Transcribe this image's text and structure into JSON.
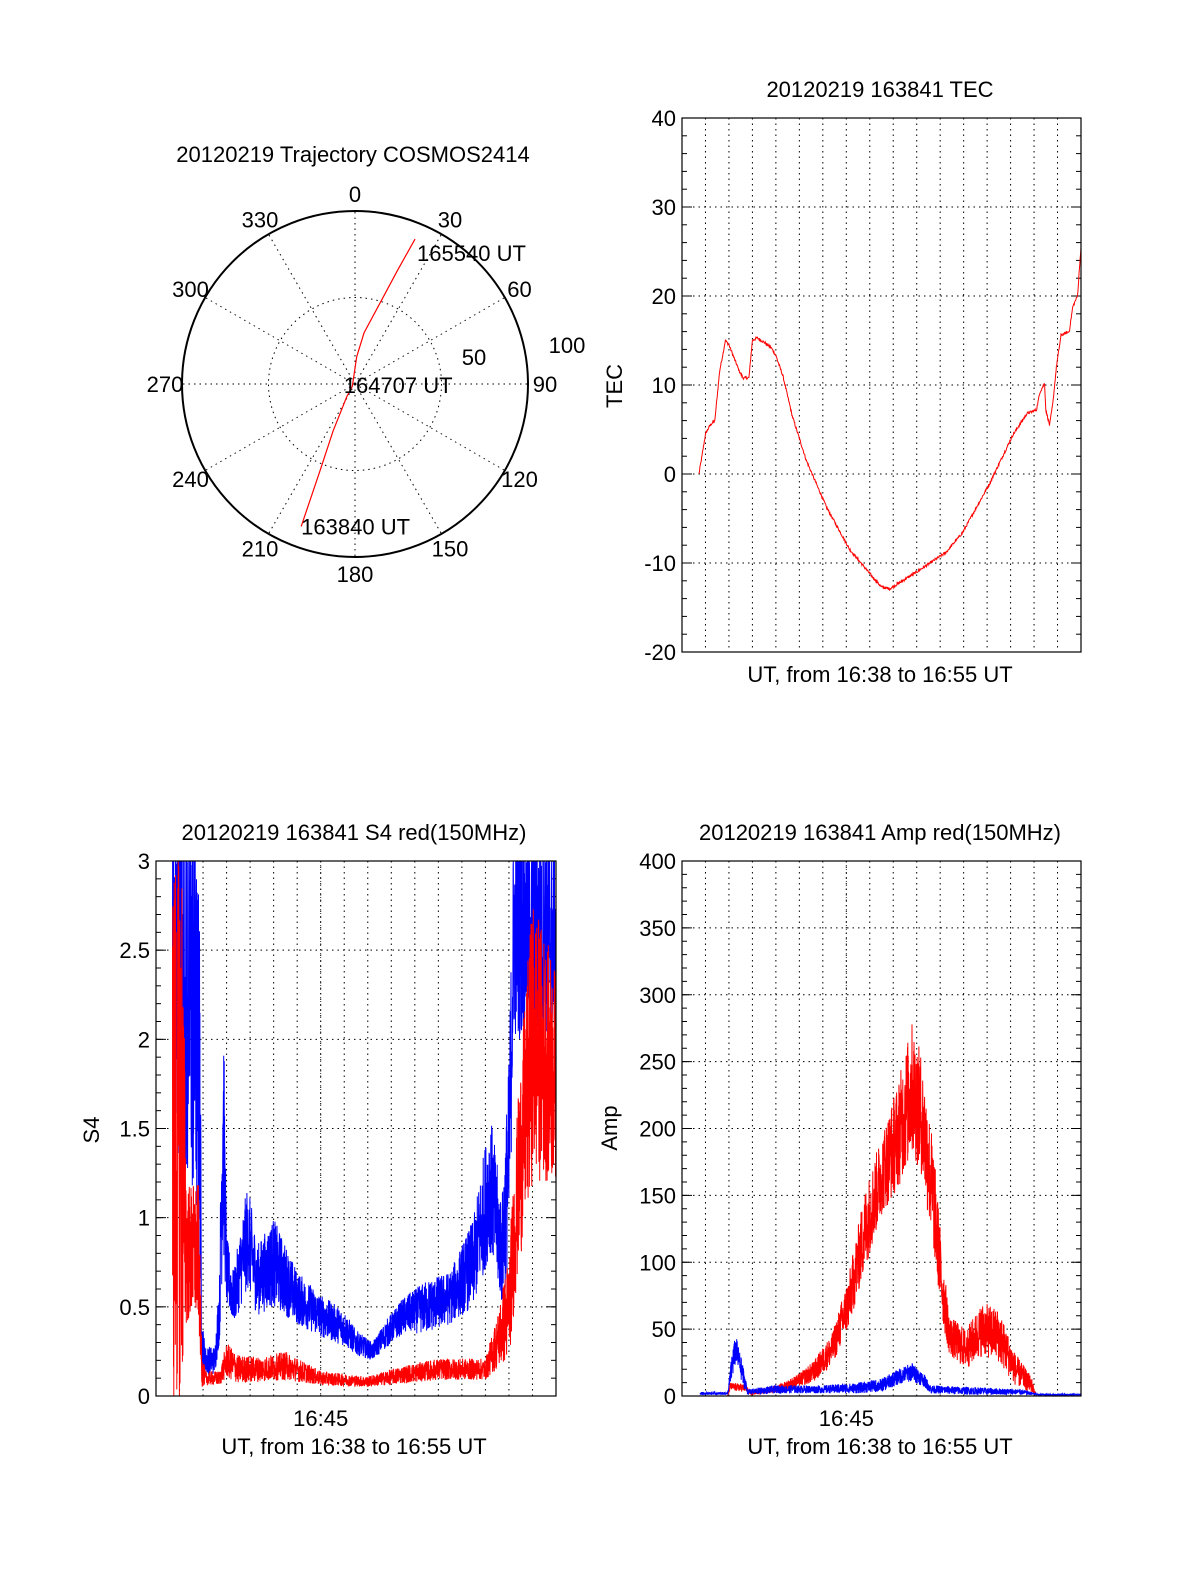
{
  "chart_data": [
    {
      "type": "polar",
      "title": "20120219 Trajectory COSMOS2414",
      "rmax": 100,
      "inner_circle": 50,
      "azimuth_labels": [
        "0",
        "30",
        "60",
        "90",
        "120",
        "150",
        "180",
        "210",
        "240",
        "270",
        "300",
        "330"
      ],
      "radial_labels": [
        "50",
        "100"
      ],
      "trajectory_color": "#ff0000",
      "trajectory": [
        [
          200.7,
          88
        ],
        [
          202,
          53.5
        ],
        [
          205,
          30
        ],
        [
          213,
          8.7
        ],
        [
          230,
          2
        ],
        [
          3.6,
          15.8
        ],
        [
          10,
          30
        ],
        [
          17.6,
          50.9
        ],
        [
          20.5,
          70
        ],
        [
          22.5,
          90.7
        ]
      ],
      "annotations": [
        {
          "text": "163840 UT",
          "az": 200.7,
          "r": 88
        },
        {
          "text": "164707 UT",
          "az": 250,
          "r": 2
        },
        {
          "text": "165540 UT",
          "az": 22.5,
          "r": 90.7
        }
      ]
    },
    {
      "type": "line",
      "title": "20120219 163841 TEC",
      "xlabel": "UT, from 16:38 to 16:55 UT",
      "ylabel": "TEC",
      "xlim": [
        0,
        17
      ],
      "ylim": [
        -20,
        40
      ],
      "yticks": [
        "-20",
        "-10",
        "0",
        "10",
        "20",
        "30",
        "40"
      ],
      "yminor": 2,
      "xgrid_step": 1,
      "xticks": [],
      "series": [
        {
          "color": "#ff0000",
          "noise": 0.15,
          "points": [
            [
              0.72,
              0
            ],
            [
              0.85,
              2
            ],
            [
              1.0,
              4.5
            ],
            [
              1.2,
              5.5
            ],
            [
              1.4,
              6
            ],
            [
              1.6,
              11.5
            ],
            [
              1.85,
              15
            ],
            [
              2.0,
              14.5
            ],
            [
              2.45,
              11.5
            ],
            [
              2.6,
              10.8
            ],
            [
              2.85,
              10.8
            ],
            [
              3.0,
              15
            ],
            [
              3.2,
              15.3
            ],
            [
              3.5,
              14.8
            ],
            [
              3.8,
              14.2
            ],
            [
              4.0,
              13.3
            ],
            [
              4.3,
              11
            ],
            [
              4.7,
              6.5
            ],
            [
              5.3,
              1.5
            ],
            [
              6.15,
              -3.7
            ],
            [
              7.15,
              -8.5
            ],
            [
              8.1,
              -11.5
            ],
            [
              8.5,
              -12.7
            ],
            [
              8.85,
              -12.9
            ],
            [
              10.0,
              -11
            ],
            [
              11.25,
              -8.8
            ],
            [
              11.95,
              -6.6
            ],
            [
              13.1,
              -1.1
            ],
            [
              14.1,
              4.4
            ],
            [
              14.7,
              6.8
            ],
            [
              15.1,
              7.2
            ],
            [
              15.25,
              9.2
            ],
            [
              15.45,
              10.2
            ],
            [
              15.5,
              7.2
            ],
            [
              15.66,
              5.5
            ],
            [
              15.8,
              7.9
            ],
            [
              15.95,
              12
            ],
            [
              16.15,
              15.6
            ],
            [
              16.5,
              16
            ],
            [
              16.65,
              18.8
            ],
            [
              16.85,
              20
            ],
            [
              17.0,
              25.5
            ]
          ]
        }
      ]
    },
    {
      "type": "line",
      "title": "20120219 163841 S4 red(150MHz)",
      "xlabel": "UT, from 16:38 to 16:55 UT",
      "ylabel": "S4",
      "xlim": [
        0,
        17
      ],
      "ylim": [
        0,
        3
      ],
      "yticks": [
        "0",
        "0.5",
        "1",
        "1.5",
        "2",
        "2.5",
        "3"
      ],
      "yminor": 0.1,
      "xgrid_step": 1,
      "xticks": [
        {
          "value": 7,
          "label": "16:45"
        }
      ],
      "series": [
        {
          "color": "#0000ff",
          "envelope": [
            [
              0.7,
              2.3,
              1.2
            ],
            [
              1.5,
              2.3,
              1.2
            ],
            [
              1.85,
              1.8,
              1
            ],
            [
              1.95,
              0.3,
              0.15
            ],
            [
              2.1,
              0.2,
              0.08
            ],
            [
              2.5,
              0.2,
              0.08
            ],
            [
              2.7,
              0.5,
              0.2
            ],
            [
              2.85,
              1.6,
              0.8
            ],
            [
              3.0,
              0.7,
              0.2
            ],
            [
              3.3,
              0.55,
              0.15
            ],
            [
              3.9,
              0.9,
              0.3
            ],
            [
              4.3,
              0.65,
              0.2
            ],
            [
              5.0,
              0.75,
              0.25
            ],
            [
              6.0,
              0.55,
              0.15
            ],
            [
              7.0,
              0.45,
              0.12
            ],
            [
              8.0,
              0.38,
              0.1
            ],
            [
              8.5,
              0.3,
              0.07
            ],
            [
              9.2,
              0.25,
              0.05
            ],
            [
              9.8,
              0.35,
              0.08
            ],
            [
              10.5,
              0.45,
              0.1
            ],
            [
              11.5,
              0.5,
              0.15
            ],
            [
              12.5,
              0.55,
              0.15
            ],
            [
              13.5,
              0.75,
              0.25
            ],
            [
              14.2,
              1.2,
              0.4
            ],
            [
              14.7,
              0.8,
              0.3
            ],
            [
              15.0,
              1.3,
              0.6
            ],
            [
              15.2,
              2.6,
              0.6
            ],
            [
              17,
              2.6,
              0.6
            ]
          ]
        },
        {
          "color": "#ff0000",
          "envelope": [
            [
              0.7,
              1.5,
              1.6
            ],
            [
              1.1,
              1.5,
              1.6
            ],
            [
              1.3,
              0.8,
              0.4
            ],
            [
              1.8,
              0.8,
              0.4
            ],
            [
              1.95,
              0.15,
              0.1
            ],
            [
              2.1,
              0.1,
              0.04
            ],
            [
              2.7,
              0.1,
              0.04
            ],
            [
              3.0,
              0.2,
              0.1
            ],
            [
              3.5,
              0.15,
              0.08
            ],
            [
              4.5,
              0.15,
              0.07
            ],
            [
              5.5,
              0.17,
              0.08
            ],
            [
              7.0,
              0.1,
              0.04
            ],
            [
              9.0,
              0.08,
              0.03
            ],
            [
              10.5,
              0.12,
              0.05
            ],
            [
              12,
              0.15,
              0.06
            ],
            [
              14,
              0.15,
              0.06
            ],
            [
              14.5,
              0.3,
              0.15
            ],
            [
              15,
              0.5,
              0.3
            ],
            [
              15.4,
              1.2,
              0.5
            ],
            [
              16,
              2.0,
              0.8
            ],
            [
              17,
              1.8,
              0.6
            ]
          ]
        }
      ]
    },
    {
      "type": "line",
      "title": "20120219 163841 Amp red(150MHz)",
      "xlabel": "UT, from 16:38 to 16:55 UT",
      "ylabel": "Amp",
      "xlim": [
        0,
        17
      ],
      "ylim": [
        0,
        400
      ],
      "yticks": [
        "0",
        "50",
        "100",
        "150",
        "200",
        "250",
        "300",
        "350",
        "400"
      ],
      "yminor": 10,
      "xgrid_step": 1,
      "xticks": [
        {
          "value": 7,
          "label": "16:45"
        }
      ],
      "series": [
        {
          "color": "#ff0000",
          "envelope": [
            [
              0.77,
              0,
              0
            ],
            [
              1.95,
              0,
              0
            ],
            [
              2.05,
              7,
              3
            ],
            [
              2.7,
              6,
              3
            ],
            [
              2.9,
              2,
              2
            ],
            [
              3.5,
              4,
              2
            ],
            [
              4.2,
              6,
              3
            ],
            [
              5.0,
              12,
              5
            ],
            [
              5.6,
              18,
              8
            ],
            [
              6.4,
              35,
              12
            ],
            [
              7.1,
              70,
              20
            ],
            [
              7.8,
              125,
              30
            ],
            [
              8.5,
              165,
              30
            ],
            [
              9.2,
              195,
              40
            ],
            [
              9.8,
              230,
              50
            ],
            [
              10.2,
              210,
              45
            ],
            [
              10.7,
              150,
              40
            ],
            [
              11.1,
              80,
              25
            ],
            [
              11.4,
              45,
              15
            ],
            [
              12.1,
              35,
              15
            ],
            [
              12.8,
              50,
              20
            ],
            [
              13.5,
              45,
              20
            ],
            [
              14.2,
              20,
              12
            ],
            [
              14.9,
              8,
              6
            ],
            [
              15.1,
              0,
              0
            ],
            [
              17,
              0,
              0
            ]
          ]
        },
        {
          "color": "#0000ff",
          "envelope": [
            [
              0.77,
              2,
              1
            ],
            [
              1.95,
              2,
              1
            ],
            [
              2.15,
              25,
              12
            ],
            [
              2.3,
              35,
              10
            ],
            [
              2.6,
              15,
              8
            ],
            [
              2.8,
              3,
              2
            ],
            [
              4,
              5,
              3
            ],
            [
              6,
              5,
              3
            ],
            [
              7.5,
              6,
              4
            ],
            [
              8.5,
              8,
              5
            ],
            [
              9.3,
              15,
              6
            ],
            [
              9.8,
              18,
              7
            ],
            [
              10.3,
              12,
              5
            ],
            [
              10.6,
              5,
              3
            ],
            [
              12,
              4,
              3
            ],
            [
              14.5,
              3,
              2
            ],
            [
              15.2,
              1,
              0.5
            ],
            [
              17,
              1,
              0.5
            ]
          ]
        }
      ]
    }
  ]
}
